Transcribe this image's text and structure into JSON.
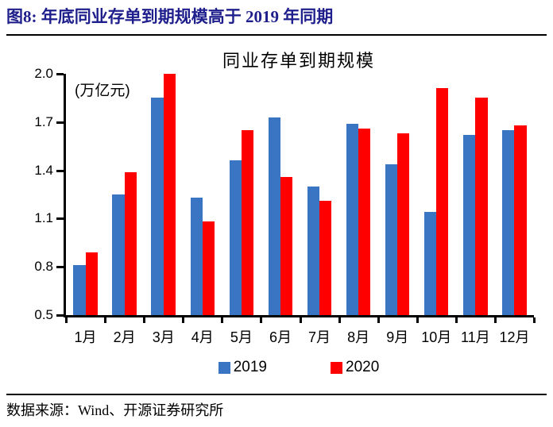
{
  "header": {
    "title": "图8:  年底同业存单到期规模高于 2019 年同期",
    "title_color": "#1E1E8C"
  },
  "chart_data": {
    "type": "bar",
    "title": "同业存单到期规模",
    "unit_label": "(万亿元)",
    "categories": [
      "1月",
      "2月",
      "3月",
      "4月",
      "5月",
      "6月",
      "7月",
      "8月",
      "9月",
      "10月",
      "11月",
      "12月"
    ],
    "series": [
      {
        "name": "2019",
        "color": "#3A75C4",
        "values": [
          0.81,
          1.25,
          1.85,
          1.23,
          1.46,
          1.73,
          1.3,
          1.69,
          1.44,
          1.14,
          1.62,
          1.65
        ]
      },
      {
        "name": "2020",
        "color": "#FF0000",
        "values": [
          0.89,
          1.39,
          2.0,
          1.08,
          1.65,
          1.36,
          1.21,
          1.66,
          1.63,
          1.91,
          1.85,
          1.68
        ]
      }
    ],
    "ylim": [
      0.5,
      2.0
    ],
    "ytick_labels": [
      "2.0",
      "1.7",
      "1.4",
      "1.1",
      "0.8",
      "0.5"
    ],
    "legend_position": "bottom",
    "grid": false,
    "axis_color": "#000000"
  },
  "footer": {
    "source": "数据来源：Wind、开源证券研究所"
  }
}
